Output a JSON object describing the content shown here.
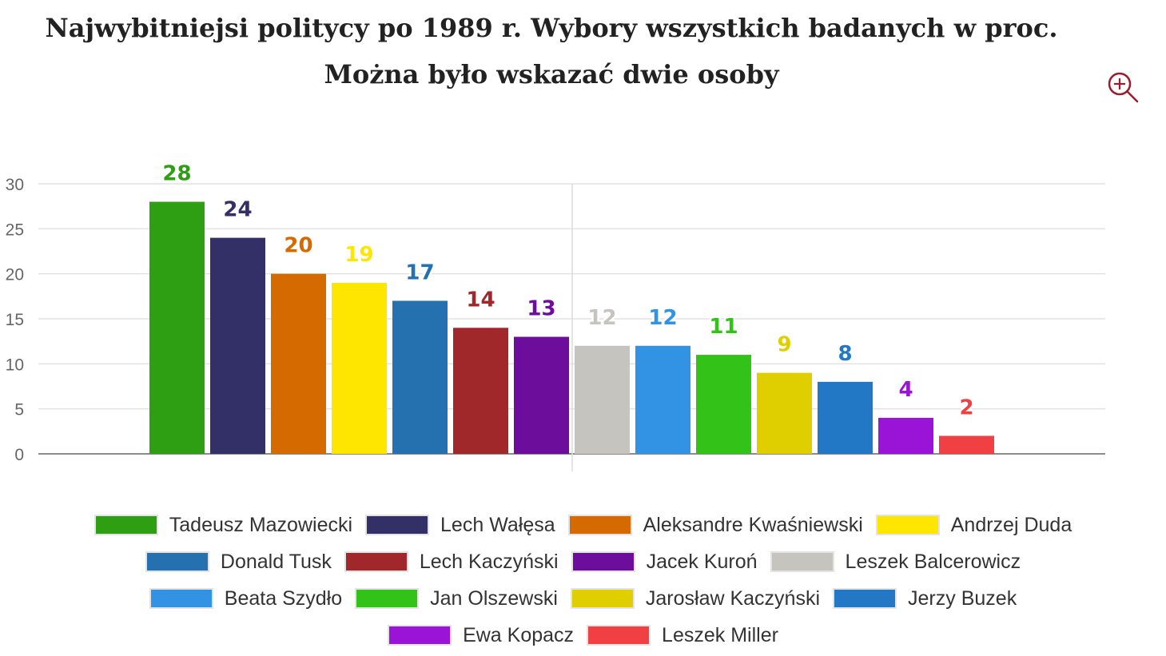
{
  "title": "Najwybitniejsi politycy po 1989 r. Wybory wszystkich badanych w proc. Można było wskazać dwie osoby",
  "zoom_icon": "zoom-in-icon",
  "chart_data": {
    "type": "bar",
    "title": "Najwybitniejsi politycy po 1989 r. Wybory wszystkich badanych w proc. Można było wskazać dwie osoby",
    "xlabel": "",
    "ylabel": "",
    "ylim": [
      0,
      30
    ],
    "yticks": [
      0,
      5,
      10,
      15,
      20,
      25,
      30
    ],
    "grid": true,
    "legend_position": "bottom",
    "series": [
      {
        "name": "Tadeusz Mazowiecki",
        "value": 28,
        "color": "#2e9e12"
      },
      {
        "name": "Lech Wałęsa",
        "value": 24,
        "color": "#323066"
      },
      {
        "name": "Aleksandre Kwaśniewski",
        "value": 20,
        "color": "#d46a00"
      },
      {
        "name": "Andrzej Duda",
        "value": 19,
        "color": "#ffe600"
      },
      {
        "name": "Donald Tusk",
        "value": 17,
        "color": "#2570ae"
      },
      {
        "name": "Lech Kaczyński",
        "value": 14,
        "color": "#a0282b"
      },
      {
        "name": "Jacek Kuroń",
        "value": 13,
        "color": "#6c0d9b"
      },
      {
        "name": "Leszek Balcerowicz",
        "value": 12,
        "color": "#c5c4bf"
      },
      {
        "name": "Beata Szydło",
        "value": 12,
        "color": "#3292e3"
      },
      {
        "name": "Jan Olszewski",
        "value": 11,
        "color": "#33c218"
      },
      {
        "name": "Jarosław Kaczyński",
        "value": 9,
        "color": "#e0cf00"
      },
      {
        "name": "Jerzy Buzek",
        "value": 8,
        "color": "#2278c4"
      },
      {
        "name": "Ewa Kopacz",
        "value": 4,
        "color": "#9a14d8"
      },
      {
        "name": "Leszek Miller",
        "value": 2,
        "color": "#f04044"
      }
    ]
  }
}
